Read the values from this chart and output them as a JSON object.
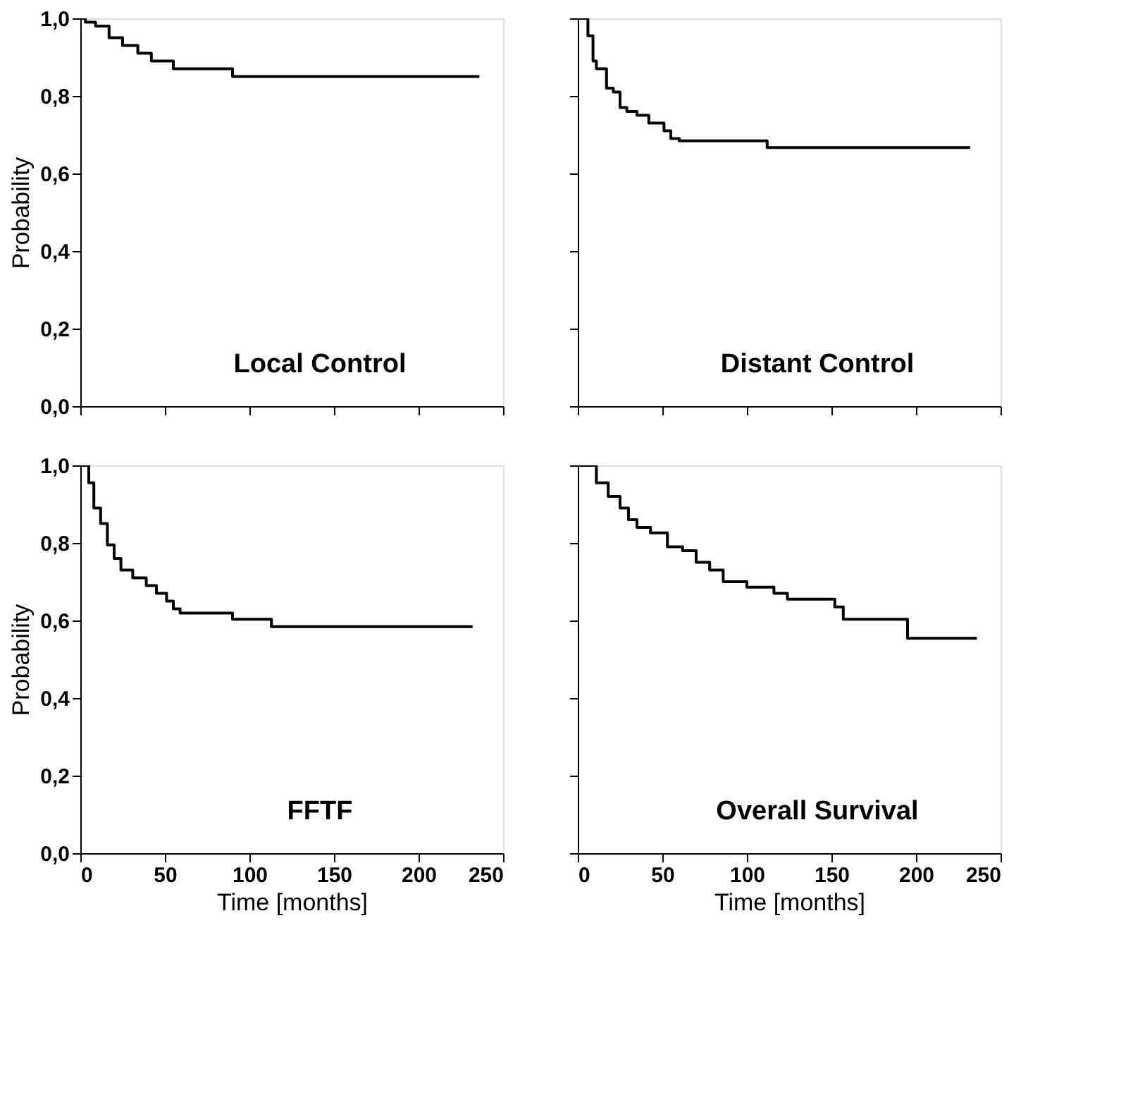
{
  "chart_data": [
    {
      "type": "step",
      "title": "Local Control",
      "ylabel": "Probability",
      "tick_labels": "y",
      "xlim": [
        0,
        250
      ],
      "xticks": [
        0,
        50,
        100,
        150,
        200,
        250
      ],
      "ylim": [
        0,
        1
      ],
      "yticks": [
        {
          "value": 0,
          "label": "0,0"
        },
        {
          "value": 0.2,
          "label": "0,2"
        },
        {
          "value": 0.4,
          "label": "0,4"
        },
        {
          "value": 0.6,
          "label": "0,6"
        },
        {
          "value": 0.8,
          "label": "0,8"
        },
        {
          "value": 1,
          "label": "1,0"
        }
      ],
      "series": [
        {
          "color": "#000000",
          "x": [
            0,
            3,
            9,
            17,
            25,
            34,
            42,
            55,
            90,
            236
          ],
          "values": [
            1.0,
            0.99,
            0.98,
            0.95,
            0.93,
            0.91,
            0.89,
            0.87,
            0.85,
            0.85
          ]
        }
      ]
    },
    {
      "type": "step",
      "title": "Distant Control",
      "tick_labels": false,
      "xlim": [
        0,
        250
      ],
      "xticks": [
        0,
        50,
        100,
        150,
        200,
        250
      ],
      "ylim": [
        0,
        1
      ],
      "yticks": [
        0,
        0.2,
        0.4,
        0.6,
        0.8,
        1
      ],
      "series": [
        {
          "color": "#000000",
          "x": [
            0,
            2,
            6,
            9,
            11,
            17,
            21,
            25,
            29,
            35,
            42,
            51,
            55,
            60,
            112,
            232
          ],
          "values": [
            1.0,
            1.0,
            0.955,
            0.89,
            0.87,
            0.82,
            0.81,
            0.77,
            0.76,
            0.75,
            0.73,
            0.71,
            0.69,
            0.684,
            0.667,
            0.667
          ]
        }
      ]
    },
    {
      "type": "step",
      "title": "FFTF",
      "ylabel": "Probability",
      "xlabel": "Time [months]",
      "xlim": [
        0,
        250
      ],
      "xticks": [
        0,
        50,
        100,
        150,
        200,
        250
      ],
      "ylim": [
        0,
        1
      ],
      "yticks": [
        {
          "value": 0,
          "label": "0,0"
        },
        {
          "value": 0.2,
          "label": "0,2"
        },
        {
          "value": 0.4,
          "label": "0,4"
        },
        {
          "value": 0.6,
          "label": "0,6"
        },
        {
          "value": 0.8,
          "label": "0,8"
        },
        {
          "value": 1,
          "label": "1,0"
        }
      ],
      "series": [
        {
          "color": "#000000",
          "x": [
            0,
            3,
            5,
            8,
            12,
            16,
            20,
            24,
            31,
            39,
            45,
            51,
            55,
            59,
            90,
            113,
            232
          ],
          "values": [
            1.0,
            1.0,
            0.955,
            0.89,
            0.85,
            0.795,
            0.76,
            0.73,
            0.71,
            0.69,
            0.67,
            0.65,
            0.63,
            0.619,
            0.603,
            0.584,
            0.584
          ]
        }
      ]
    },
    {
      "type": "step",
      "title": "Overall Survival",
      "xlabel": "Time [months]",
      "tick_labels": "x",
      "xlim": [
        0,
        250
      ],
      "xticks": [
        0,
        50,
        100,
        150,
        200,
        250
      ],
      "ylim": [
        0,
        1
      ],
      "yticks": [
        0,
        0.2,
        0.4,
        0.6,
        0.8,
        1
      ],
      "series": [
        {
          "color": "#000000",
          "x": [
            0,
            6,
            11,
            18,
            25,
            30,
            35,
            43,
            53,
            62,
            70,
            78,
            86,
            100,
            116,
            124,
            152,
            157,
            195,
            236
          ],
          "values": [
            1.0,
            1.0,
            0.955,
            0.92,
            0.89,
            0.86,
            0.84,
            0.826,
            0.79,
            0.78,
            0.75,
            0.73,
            0.7,
            0.686,
            0.67,
            0.655,
            0.635,
            0.603,
            0.554,
            0.554
          ]
        }
      ]
    }
  ]
}
